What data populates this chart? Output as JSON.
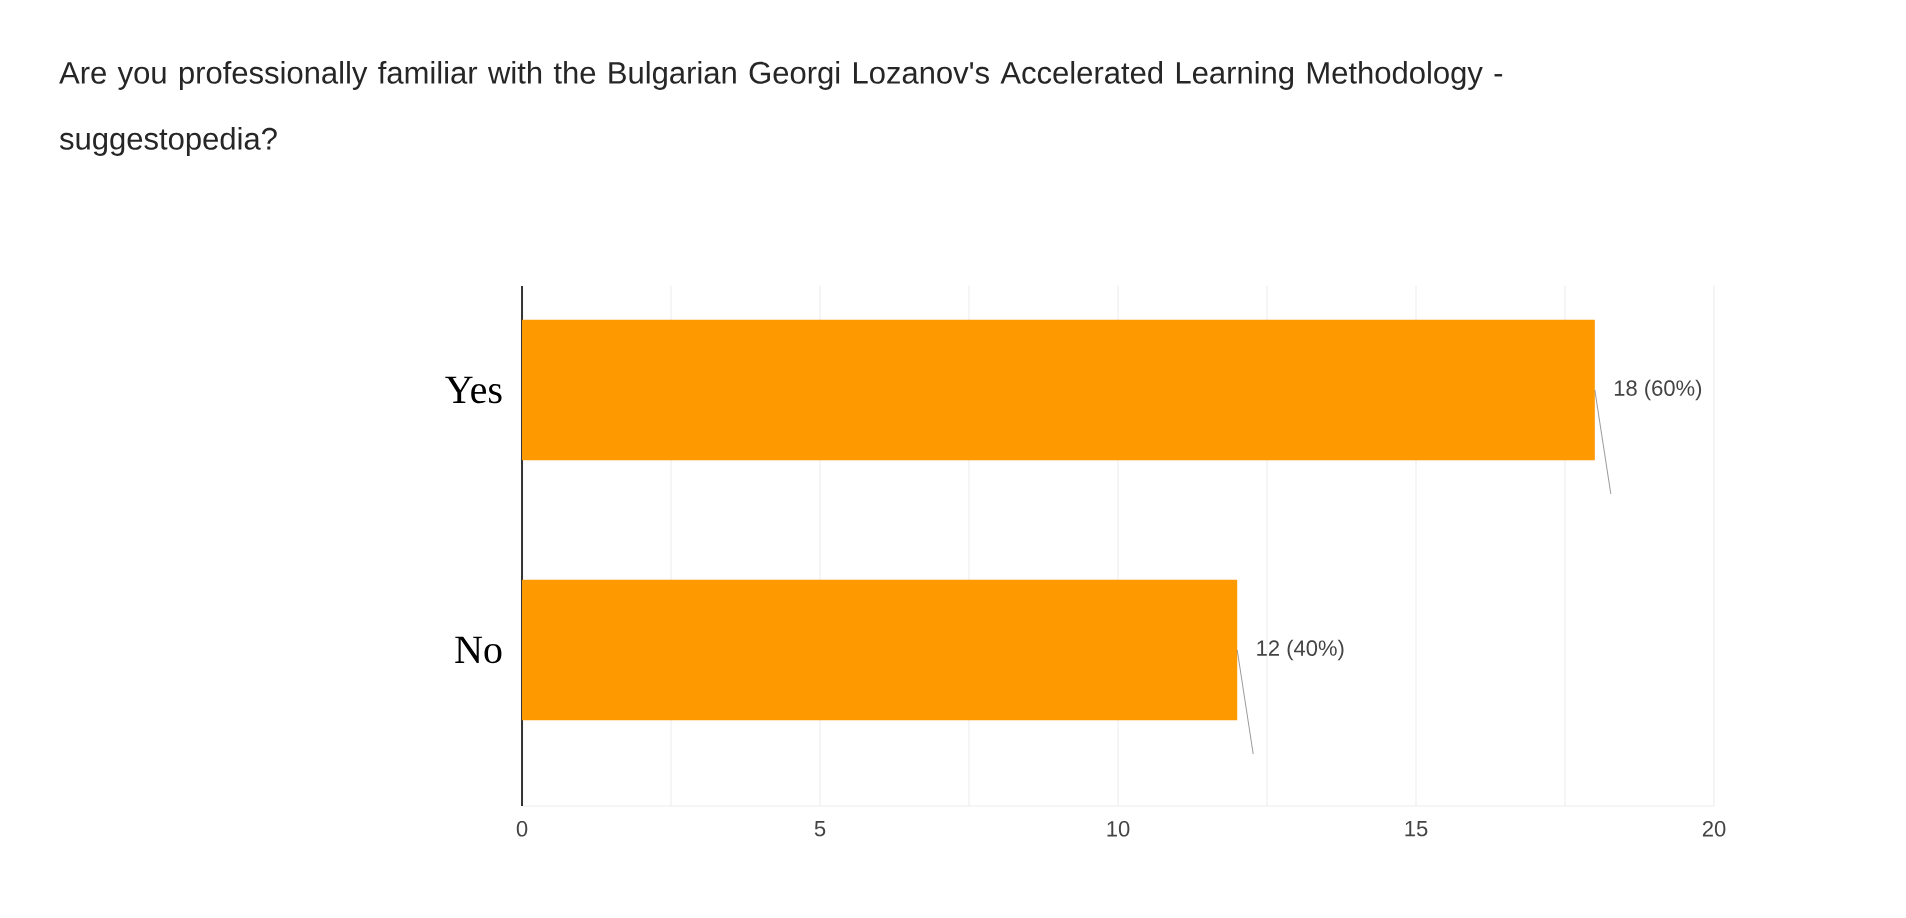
{
  "chart_data": {
    "type": "bar",
    "orientation": "horizontal",
    "title": "Are you professionally familiar with the Bulgarian Georgi Lozanov's Accelerated Learning Methodology - suggestopedia?",
    "categories": [
      "Yes",
      "No"
    ],
    "values": [
      18,
      12
    ],
    "value_labels": [
      "18 (60%)",
      "12 (40%)"
    ],
    "color": "#ff9900",
    "xlim": [
      0,
      20
    ],
    "xticks": [
      0,
      {
        "value": 2.5,
        "label": null
      },
      5,
      {
        "value": 7.5,
        "label": null
      },
      10,
      {
        "value": 12.5,
        "label": null
      },
      15,
      {
        "value": 17.5,
        "label": null
      },
      20
    ],
    "grid": "x"
  }
}
